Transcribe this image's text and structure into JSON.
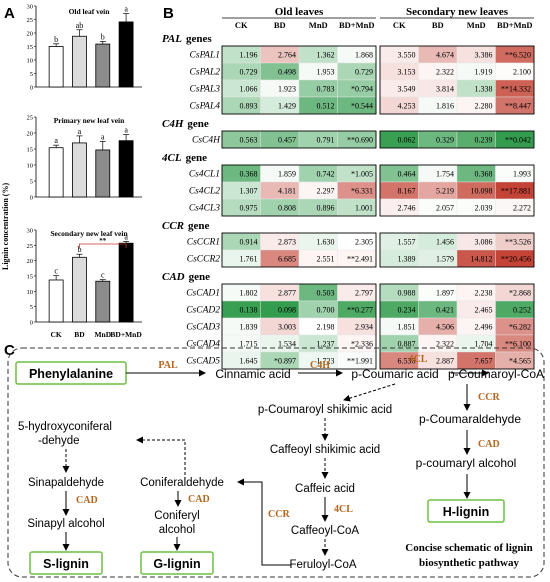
{
  "panel_labels": {
    "a": "A",
    "b": "B",
    "c": "C"
  },
  "panel_a": {
    "ylabel": "Lignin concentration (%)",
    "categories": [
      "CK",
      "BD",
      "MnD",
      "BD+MnD"
    ],
    "colors": [
      "#ffffff",
      "#dcdcdc",
      "#8c8c8c",
      "#000000"
    ],
    "charts": [
      {
        "title": "Old leaf vein",
        "ylim": [
          0,
          30
        ],
        "ticks": [
          "0",
          "5",
          "10",
          "15",
          "20",
          "25",
          "30"
        ],
        "values": [
          15,
          18.8,
          15.9,
          24.1
        ],
        "errors": [
          1.0,
          2.4,
          1.0,
          3.1
        ],
        "letters": [
          "b",
          "ab",
          "b",
          "a"
        ],
        "bracket": null
      },
      {
        "title": "Primary new leaf vein",
        "ylim": [
          0,
          25
        ],
        "ticks": [
          "0",
          "5",
          "10",
          "15",
          "20",
          "25"
        ],
        "values": [
          15.4,
          16.9,
          14.7,
          17.6
        ],
        "errors": [
          0.8,
          2.2,
          2.7,
          1.9
        ],
        "letters": [
          "a",
          "a",
          "a",
          "a"
        ],
        "bracket": null
      },
      {
        "title": "Secondary new leaf vein",
        "ylim": [
          0,
          30
        ],
        "ticks": [
          "0",
          "5",
          "10",
          "15",
          "20",
          "25",
          "30"
        ],
        "values": [
          13.7,
          21.1,
          13.3,
          25.7
        ],
        "errors": [
          1.4,
          1.0,
          0.5,
          0.6
        ],
        "letters": [
          "c",
          "b",
          "c",
          "a"
        ],
        "bracket": "**"
      }
    ]
  },
  "panel_b": {
    "group_titles": [
      "Old leaves",
      "Secondary new leaves"
    ],
    "col_headers": [
      "CK",
      "BD",
      "MnD",
      "BD+MnD"
    ],
    "sections": [
      {
        "title": "PAL",
        "suffix": "genes",
        "rows": [
          {
            "gene": "CsPAL1",
            "old": [
              "1.196",
              "2.764",
              "1.362",
              "1.868"
            ],
            "new": [
              "3.550",
              "4.674",
              "3.386",
              "**6.520"
            ],
            "old_shade": [
              0.3,
              -0.3,
              0.3,
              0.05
            ],
            "new_shade": [
              -0.1,
              -0.35,
              -0.15,
              -0.75
            ]
          },
          {
            "gene": "CsPAL2",
            "old": [
              "0.729",
              "0.498",
              "1.953",
              "0.729"
            ],
            "new": [
              "3.153",
              "2.322",
              "1.919",
              "2.100"
            ],
            "old_shade": [
              0.4,
              0.6,
              0.05,
              0.4
            ],
            "new_shade": [
              -0.15,
              -0.05,
              0.05,
              -0.02
            ]
          },
          {
            "gene": "CsPAL3",
            "old": [
              "1.066",
              "1.923",
              "0.783",
              "*0.794"
            ],
            "new": [
              "3.549",
              "3.814",
              "1.338",
              "**14.332"
            ],
            "old_shade": [
              0.25,
              0.05,
              0.5,
              0.5
            ],
            "new_shade": [
              -0.1,
              -0.12,
              0.3,
              -0.8
            ]
          },
          {
            "gene": "CsPAL4",
            "old": [
              "0.893",
              "1.429",
              "0.512",
              "*0.544"
            ],
            "new": [
              "4.253",
              "1.816",
              "2.280",
              "**8.447"
            ],
            "old_shade": [
              0.4,
              0.2,
              0.7,
              0.7
            ],
            "new_shade": [
              -0.2,
              0.05,
              -0.05,
              -0.7
            ]
          }
        ]
      },
      {
        "title": "C4H",
        "suffix": "gene",
        "rows": [
          {
            "gene": "CsC4H",
            "old": [
              "0.563",
              "0.457",
              "0.791",
              "**0.690"
            ],
            "new": [
              "0.062",
              "0.329",
              "0.239",
              "**0.042"
            ],
            "old_shade": [
              0.55,
              0.6,
              0.45,
              0.5
            ],
            "new_shade": [
              0.95,
              0.7,
              0.8,
              0.98
            ]
          }
        ]
      },
      {
        "title": "4CL",
        "suffix": "gene",
        "rows": [
          {
            "gene": "Cs4CL1",
            "old": [
              "0.368",
              "1.859",
              "0.742",
              "*1.005"
            ],
            "new": [
              "0.464",
              "1.754",
              "0.368",
              "1.993"
            ],
            "old_shade": [
              0.7,
              0.05,
              0.45,
              0.3
            ],
            "new_shade": [
              0.6,
              0.05,
              0.7,
              0.02
            ]
          },
          {
            "gene": "Cs4CL2",
            "old": [
              "1.307",
              "4.181",
              "2.297",
              "*6.331"
            ],
            "new": [
              "8.167",
              "5.219",
              "10.098",
              "**17.881"
            ],
            "old_shade": [
              0.25,
              -0.35,
              -0.05,
              -0.55
            ],
            "new_shade": [
              -0.7,
              -0.45,
              -0.75,
              -0.95
            ]
          },
          {
            "gene": "Cs4CL3",
            "old": [
              "0.975",
              "0.808",
              "0.896",
              "1.001"
            ],
            "new": [
              "2.746",
              "2.057",
              "2.039",
              "2.272"
            ],
            "old_shade": [
              0.35,
              0.45,
              0.4,
              0.3
            ],
            "new_shade": [
              -0.08,
              0.02,
              0.02,
              -0.04
            ]
          }
        ]
      },
      {
        "title": "CCR",
        "suffix": "gene",
        "rows": [
          {
            "gene": "CsCCR1",
            "old": [
              "0.914",
              "2.873",
              "1.630",
              "2.305"
            ],
            "new": [
              "1.557",
              "1.456",
              "3.086",
              "**3.526"
            ],
            "old_shade": [
              0.4,
              -0.1,
              0.1,
              0.0
            ],
            "new_shade": [
              0.15,
              0.2,
              -0.12,
              -0.25
            ]
          },
          {
            "gene": "CsCCR2",
            "old": [
              "1.761",
              "6.685",
              "2.551",
              "**2.491"
            ],
            "new": [
              "1.389",
              "1.579",
              "14.812",
              "**20.456"
            ],
            "old_shade": [
              0.1,
              -0.6,
              -0.05,
              -0.05
            ],
            "new_shade": [
              0.2,
              0.15,
              -0.85,
              -0.95
            ]
          }
        ]
      },
      {
        "title": "CAD",
        "suffix": "gene",
        "rows": [
          {
            "gene": "CsCAD1",
            "old": [
              "1.802",
              "2.877",
              "0.503",
              "2.797"
            ],
            "new": [
              "0.988",
              "1.897",
              "2.238",
              "*2.868"
            ],
            "old_shade": [
              0.05,
              -0.15,
              0.7,
              -0.1
            ],
            "new_shade": [
              0.35,
              0.02,
              -0.05,
              -0.2
            ]
          },
          {
            "gene": "CsCAD2",
            "old": [
              "0.138",
              "0.098",
              "0.700",
              "**0.277"
            ],
            "new": [
              "0.234",
              "0.421",
              "2.465",
              "0.252"
            ],
            "old_shade": [
              0.95,
              0.98,
              0.45,
              0.85
            ],
            "new_shade": [
              0.85,
              0.7,
              -0.1,
              0.85
            ]
          },
          {
            "gene": "CsCAD3",
            "old": [
              "1.839",
              "3.003",
              "2.198",
              "2.934"
            ],
            "new": [
              "1.851",
              "4.506",
              "2.496",
              "*6.282"
            ],
            "old_shade": [
              0.05,
              -0.2,
              0.0,
              -0.15
            ],
            "new_shade": [
              0.05,
              -0.4,
              -0.05,
              -0.55
            ]
          },
          {
            "gene": "CsCAD4",
            "old": [
              "1.715",
              "1.534",
              "1.237",
              "*2.336"
            ],
            "new": [
              "0.887",
              "2.322",
              "1.704",
              "**6.100"
            ],
            "old_shade": [
              0.05,
              0.1,
              0.25,
              -0.05
            ],
            "new_shade": [
              0.45,
              -0.05,
              0.1,
              -0.6
            ]
          },
          {
            "gene": "CsCAD5",
            "old": [
              "1.645",
              "*0.897",
              "1.723",
              "**1.991"
            ],
            "new": [
              "6.536",
              "2.887",
              "7.657",
              "*4.565"
            ],
            "old_shade": [
              0.1,
              0.4,
              0.08,
              0.03
            ],
            "new_shade": [
              -0.6,
              -0.15,
              -0.7,
              -0.4
            ]
          }
        ]
      }
    ],
    "colors": {
      "low": "#2f9a4a",
      "high": "#c0392b",
      "mid": "#ffffff"
    }
  },
  "panel_c": {
    "title_line1": "Concise schematic of lignin",
    "title_line2": "biosynthetic pathway",
    "metabolites": {
      "phenylalanine": "Phenylalanine",
      "cinnamic": "Cinnamic acid",
      "p_coumaric": "p-Coumaric acid",
      "p_coumaroyl_coa": "p-Coumaroyl-CoA",
      "p_coumaroyl_shikimic": "p-Coumaroyl shikimic acid",
      "caffeoyl_shikimic": "Caffeoyl shikimic acid",
      "caffeic": "Caffeic acid",
      "caffeoyl_coa": "Caffeoyl-CoA",
      "feruloyl_coa": "Feruloyl-CoA",
      "p_coumaraldehyde": "p-Coumaraldehyde",
      "p_coumaryl_alcohol": "p-coumaryl alcohol",
      "hydroxyconiferal_1": "5-hydroxyconiferal",
      "hydroxyconiferal_2": "-dehyde",
      "sinapaldehyde": "Sinapaldehyde",
      "coniferaldehyde": "Coniferaldehyde",
      "sinapyl_alcohol": "Sinapyl alcohol",
      "coniferyl_1": "Coniferyl",
      "coniferyl_2": "alcohol",
      "h_lignin": "H-lignin",
      "s_lignin": "S-lignin",
      "g_lignin": "G-lignin"
    },
    "enzymes": {
      "pal": "PAL",
      "c4h": "C4H",
      "cl_top": "4CL",
      "ccr_right": "CCR",
      "cad_right": "CAD",
      "cl_mid": "4CL",
      "ccr_left": "CCR",
      "cad_s": "CAD",
      "cad_g": "CAD"
    }
  }
}
